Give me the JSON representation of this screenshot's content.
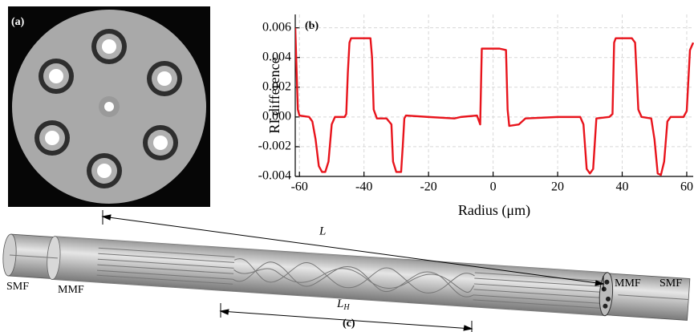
{
  "panels": {
    "a": "(a)",
    "b": "(b)",
    "c": "(c)"
  },
  "chart_data": {
    "type": "line",
    "xlabel": "Radius (μm)",
    "ylabel": "RI difference",
    "xlim": [
      -61.3,
      62
    ],
    "ylim": [
      -0.004,
      0.0069
    ],
    "xticks": [
      -60,
      -40,
      -20,
      0,
      20,
      40,
      60
    ],
    "yticks": [
      -0.004,
      -0.002,
      {
        "value": 0,
        "label": "0.000"
      },
      0.002,
      0.004,
      0.006
    ],
    "grid": true,
    "series": [
      {
        "color": "#e8141c",
        "x": [
          -61.3,
          -60.5,
          -60,
          -57,
          -56,
          -55,
          -54,
          -53,
          -52,
          -51,
          -50,
          -49,
          -46,
          -45.5,
          -45,
          -44.5,
          -44,
          -40,
          -38,
          -37.5,
          -37,
          -36,
          -33,
          -31.5,
          -31,
          -30,
          -28.5,
          -28,
          -27.5,
          -27,
          -20,
          -12,
          -10,
          -5,
          -4,
          -3.5,
          2,
          4,
          4.5,
          5,
          8,
          10,
          20,
          27,
          28,
          29,
          30,
          31,
          32,
          36,
          37,
          37.5,
          38,
          43,
          44,
          45,
          46,
          49,
          50,
          51,
          52,
          53,
          54,
          55,
          59,
          60,
          61,
          62
        ],
        "values": [
          0.006,
          0.0005,
          0.0001,
          0.0,
          -0.0003,
          -0.0015,
          -0.0033,
          -0.0037,
          -0.0037,
          -0.003,
          -0.0005,
          0.0,
          0.0,
          0.0002,
          0.003,
          0.005,
          0.0053,
          0.0053,
          0.0053,
          0.004,
          0.0005,
          -0.0001,
          -0.0001,
          -0.0005,
          -0.003,
          -0.0037,
          -0.0037,
          -0.002,
          -0.0001,
          0.0001,
          0.0,
          -0.0001,
          0.0,
          0.0001,
          -0.0005,
          0.0046,
          0.0046,
          0.0045,
          0.0005,
          -0.0006,
          -0.0005,
          -0.0001,
          0.0,
          0.0,
          -0.0005,
          -0.0035,
          -0.0038,
          -0.0035,
          -0.0001,
          0.0,
          0.0002,
          0.005,
          0.0053,
          0.0053,
          0.005,
          0.0005,
          0.0,
          -0.0001,
          -0.0015,
          -0.0038,
          -0.0039,
          -0.003,
          -0.0003,
          0.0,
          0.0,
          0.0004,
          0.0045,
          0.005
        ]
      }
    ]
  },
  "diagram": {
    "L": "L",
    "LH_main": "L",
    "LH_sub": "H",
    "smf_left": "SMF",
    "mmf_left": "MMF",
    "mmf_right": "MMF",
    "smf_right": "SMF"
  }
}
